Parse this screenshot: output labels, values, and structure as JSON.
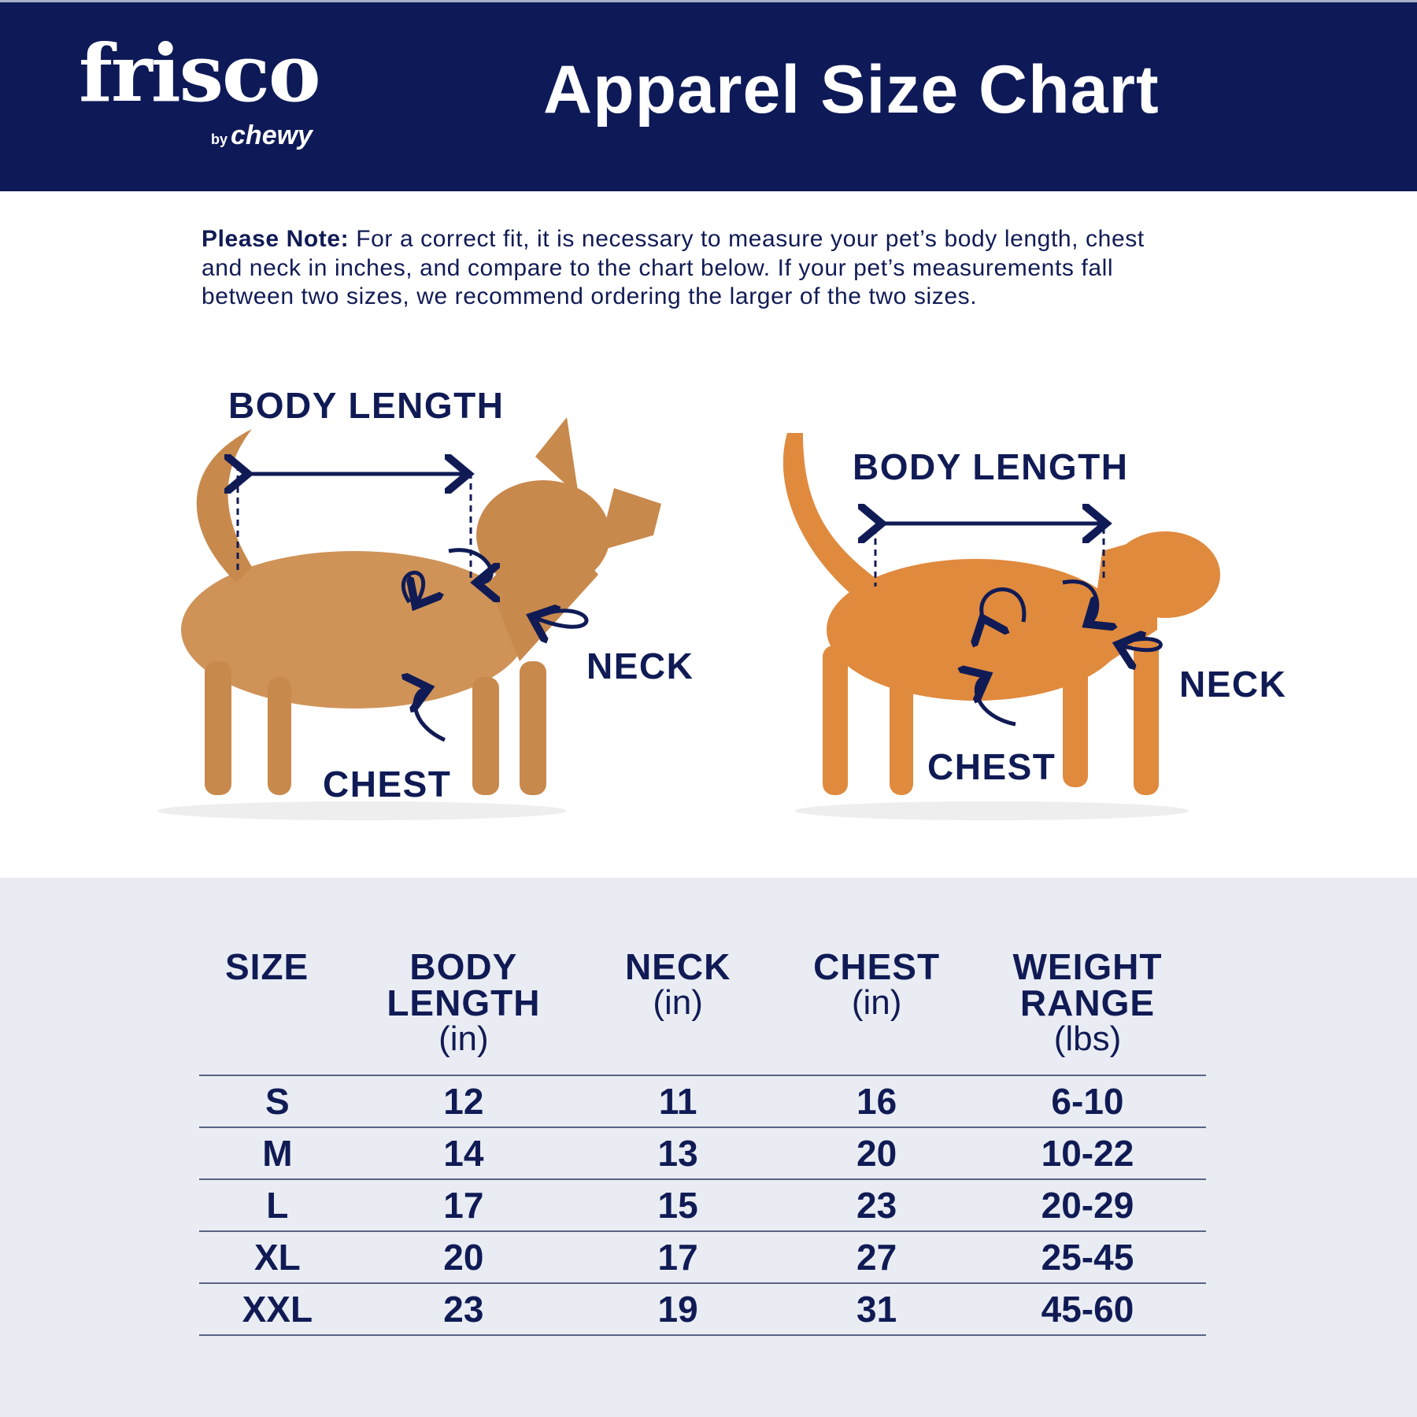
{
  "header": {
    "logo_text": "frisco",
    "logo_sub_by": "by",
    "logo_sub_brand": "chewy",
    "title": "Apparel Size Chart"
  },
  "note": {
    "label": "Please Note:",
    "text": " For a correct fit, it is necessary to measure your pet’s body length, chest and neck in inches, and compare to the chart below. If your pet’s measurements fall between two sizes, we recommend ordering the larger of the two sizes."
  },
  "dog_labels": {
    "body_length": "BODY LENGTH",
    "neck": "NECK",
    "chest": "CHEST"
  },
  "cat_labels": {
    "body_length": "BODY LENGTH",
    "neck": "NECK",
    "chest": "CHEST"
  },
  "colors": {
    "navy": "#0e1a57",
    "bg_light": "#e9ecf3",
    "dog": "#c8894c",
    "cat": "#e08a3e"
  },
  "table": {
    "headers": [
      {
        "title": "SIZE",
        "title2": "",
        "unit": ""
      },
      {
        "title": "BODY",
        "title2": "LENGTH",
        "unit": "(in)"
      },
      {
        "title": "NECK",
        "title2": "",
        "unit": "(in)"
      },
      {
        "title": "CHEST",
        "title2": "",
        "unit": "(in)"
      },
      {
        "title": "WEIGHT",
        "title2": "RANGE",
        "unit": "(lbs)"
      }
    ],
    "rows": [
      [
        "S",
        "12",
        "11",
        "16",
        "6-10"
      ],
      [
        "M",
        "14",
        "13",
        "20",
        "10-22"
      ],
      [
        "L",
        "17",
        "15",
        "23",
        "20-29"
      ],
      [
        "XL",
        "20",
        "17",
        "27",
        "25-45"
      ],
      [
        "XXL",
        "23",
        "19",
        "31",
        "45-60"
      ]
    ]
  }
}
